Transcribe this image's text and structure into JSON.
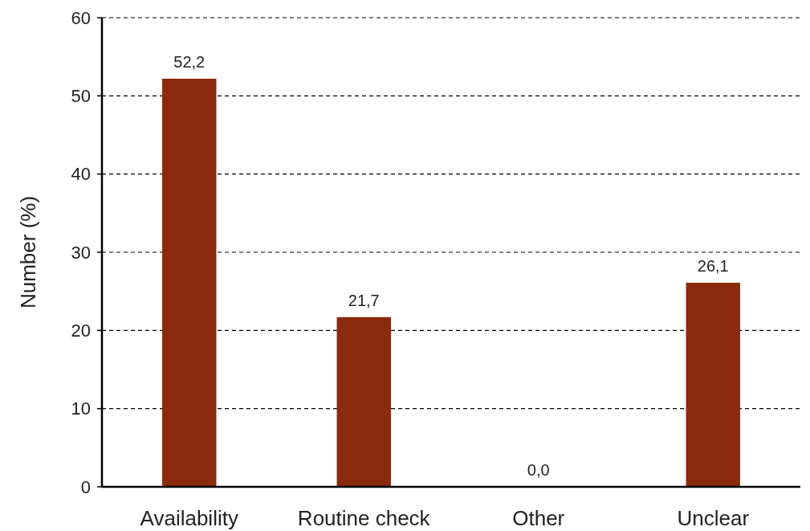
{
  "chart_data": {
    "type": "bar",
    "ylabel": "Number (%)",
    "categories": [
      "Availability",
      "Routine check",
      "Other",
      "Unclear"
    ],
    "values": [
      52.2,
      21.7,
      0.0,
      26.1
    ],
    "value_labels": [
      "52,2",
      "21,7",
      "0,0",
      "26,1"
    ],
    "color": "#8b2a0c",
    "ylim": [
      0,
      60
    ],
    "yticks": [
      0,
      10,
      20,
      30,
      40,
      50,
      60
    ],
    "grid": "y"
  }
}
